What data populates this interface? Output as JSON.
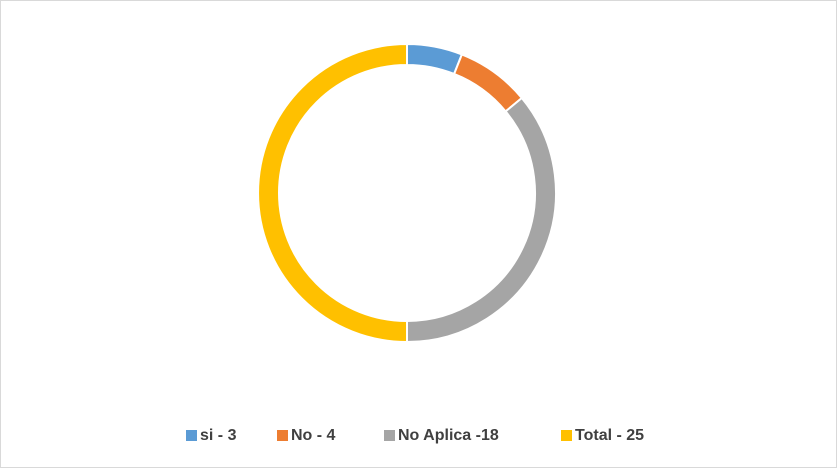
{
  "chart_data": {
    "type": "donut",
    "categories": [
      "si - 3",
      "No - 4",
      "No Aplica -18",
      "Total - 25"
    ],
    "values": [
      3,
      4,
      18,
      25
    ],
    "colors": [
      "#5b9bd5",
      "#ed7d31",
      "#a5a5a5",
      "#ffc000"
    ],
    "legend": "bottom"
  }
}
